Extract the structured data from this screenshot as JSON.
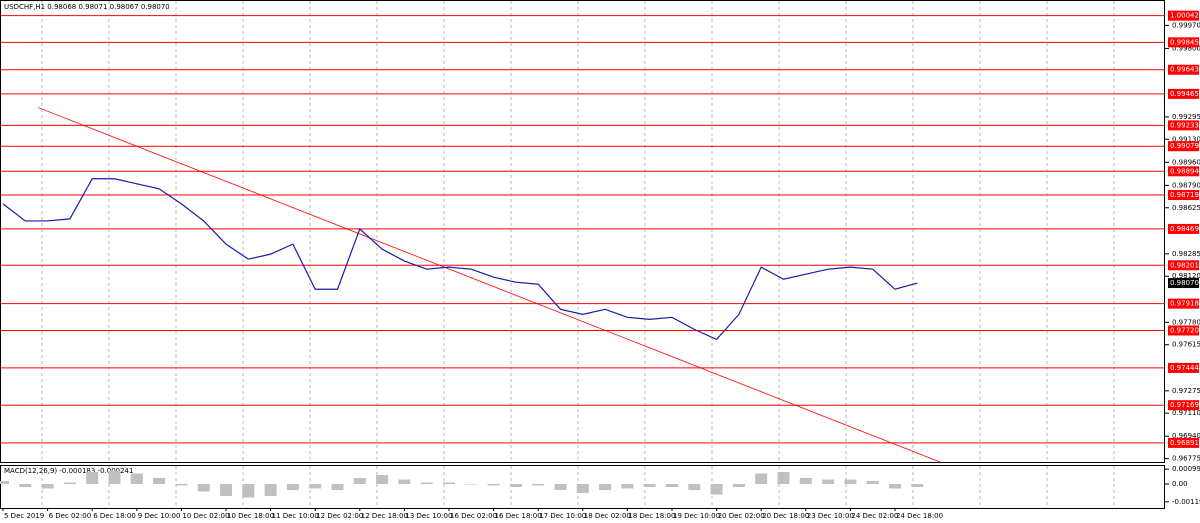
{
  "chart_data": [
    {
      "type": "line",
      "title": "USDCHF,H1  0.98068 0.98071 0.98067 0.98070",
      "categories": [
        "5 Dec 2019",
        null,
        "6 Dec 02:00",
        null,
        "6 Dec 18:00",
        null,
        "9 Dec 10:00",
        null,
        "10 Dec 02:00",
        null,
        "10 Dec 18:00",
        null,
        "11 Dec 10:00",
        null,
        "12 Dec 02:00",
        null,
        "12 Dec 18:00",
        null,
        "13 Dec 10:00",
        null,
        "16 Dec 02:00",
        null,
        "16 Dec 18:00",
        null,
        "17 Dec 10:00",
        null,
        "18 Dec 02:00",
        null,
        "18 Dec 18:00",
        null,
        "19 Dec 10:00",
        null,
        "20 Dec 02:00",
        null,
        "20 Dec 18:00",
        null,
        "23 Dec 10:00",
        null,
        "24 Dec 02:00",
        null,
        "24 Dec 18:00",
        null
      ],
      "series": [
        {
          "name": "USDCHF",
          "color": "#1a1aa8",
          "values": [
            0.98654,
            0.98528,
            0.98528,
            0.98543,
            0.98839,
            0.98839,
            0.98802,
            0.98765,
            0.98654,
            0.98528,
            0.98357,
            0.98246,
            0.98283,
            0.98357,
            0.98024,
            0.98024,
            0.98469,
            0.9832,
            0.98232,
            0.98172,
            0.98187,
            0.98172,
            0.98113,
            0.98076,
            0.98061,
            0.97876,
            0.97839,
            0.97876,
            0.97817,
            0.97802,
            0.97817,
            0.97728,
            0.97654,
            0.97839,
            0.98187,
            0.98098,
            0.98135,
            0.98172,
            0.98187,
            0.98172,
            0.98024,
            0.9807
          ]
        }
      ],
      "ylim": [
        0.9675,
        1.0015
      ],
      "yticks": [
        {
          "value": 0.9997,
          "label": "0.99970"
        },
        {
          "value": 0.998,
          "label": "0.99800"
        },
        0.99295,
        {
          "value": 0.9913,
          "label": "0.99130"
        },
        {
          "value": 0.9896,
          "label": "0.98960"
        },
        {
          "value": 0.9879,
          "label": "0.98790"
        },
        0.98625,
        0.98285,
        {
          "value": 0.9812,
          "label": "0.98120"
        },
        {
          "value": 0.9778,
          "label": "0.97780"
        },
        0.97615,
        0.97275,
        {
          "value": 0.9711,
          "label": "0.97110"
        },
        {
          "value": 0.9694,
          "label": "0.96940"
        },
        0.96775
      ],
      "levels": [
        1.00042,
        0.99845,
        0.99643,
        0.99465,
        0.99233,
        0.99079,
        0.98894,
        0.98719,
        0.98469,
        0.98201,
        0.97918,
        {
          "value": 0.9772,
          "label": "0.97720"
        },
        0.97444,
        0.97169,
        0.96891
      ],
      "level_color": "#ff0000",
      "current_price": {
        "value": 0.9807,
        "label": "0.98070"
      },
      "trendline": [
        0.99365,
        0.9675
      ]
    },
    {
      "type": "bar",
      "title": "MACD(12,26,9) -0.000183 -0.000241",
      "color": "#c0c0c0",
      "values": [
        0.0002,
        -0.0002,
        -0.0003,
        0.0001,
        0.0008,
        0.0009,
        0.0007,
        0.0004,
        -0.0001,
        -0.0005,
        -0.0008,
        -0.0009,
        -0.0008,
        -0.0004,
        -0.0003,
        -0.0004,
        0.0004,
        0.0006,
        0.0003,
        0.0001,
        0.0001,
        0,
        -0.0001,
        -0.0002,
        -0.0001,
        -0.0004,
        -0.0006,
        -0.0004,
        -0.0003,
        -0.0002,
        -0.0002,
        -0.0004,
        -0.0007,
        -0.0002,
        0.0007,
        0.0008,
        0.0004,
        0.0003,
        0.0003,
        0.0002,
        -0.0003,
        -0.0002
      ],
      "ylim": [
        -0.0016,
        0.0012
      ],
      "yticks": [
        0.00099,
        {
          "value": 0,
          "label": "0.00"
        },
        -0.001192
      ]
    }
  ]
}
